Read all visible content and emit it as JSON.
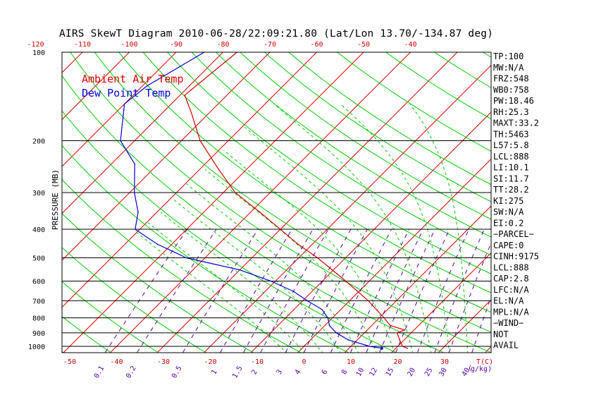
{
  "chart_data": {
    "type": "line",
    "title": "AIRS SkewT Diagram 2010-06-28/22:09:21.80 (Lat/Lon 13.70/-134.87 deg)",
    "ylabel": "PRESSURE (MB)",
    "xlabel_temp": "T(C)",
    "xlabel_mixing": "g/kg)",
    "y_scale": "log",
    "y_range_mb": [
      1050,
      100
    ],
    "x_range_c": [
      -53,
      47
    ],
    "pressure_ticks": [
      100,
      200,
      300,
      400,
      500,
      600,
      700,
      800,
      900,
      1000
    ],
    "pressure_tick_labels": [
      "100",
      "200",
      "300",
      "400",
      "500",
      "600",
      "700",
      "800",
      "900",
      "1000"
    ],
    "pressure_gridlines": [
      200,
      300,
      400,
      500,
      600,
      700,
      800,
      900,
      1000
    ],
    "bottom_temp_ticks": [
      -50,
      -40,
      -30,
      -20,
      -10,
      0,
      10,
      20,
      30
    ],
    "bottom_temp_labels": [
      "-50",
      "-40",
      "-30",
      "-20",
      "-10",
      "0",
      "10",
      "20",
      "30"
    ],
    "top_temp_ticks": [
      -120,
      -110,
      -100,
      -90,
      -80,
      -70,
      -60,
      -50,
      -40
    ],
    "top_temp_labels": [
      "-120",
      "-110",
      "-100",
      "-90",
      "-80",
      "-70",
      "-60",
      "-50",
      "-40"
    ],
    "isotherms_c": [
      -150,
      -140,
      -130,
      -120,
      -110,
      -100,
      -90,
      -80,
      -70,
      -60,
      -50,
      -40,
      -30,
      -20,
      -10,
      0,
      10,
      20,
      30,
      40
    ],
    "mixing_ratio_values": [
      0.1,
      0.2,
      0.5,
      1,
      1.5,
      2,
      3,
      4,
      6,
      8,
      10,
      12,
      15,
      20,
      25,
      30,
      40
    ],
    "mixing_ratio_labels": [
      "0.1",
      "0.2",
      "0.5",
      "1",
      "1.5",
      "2",
      "3",
      "4",
      "6",
      "8",
      "10",
      "12",
      "15",
      "20",
      "25",
      "30",
      "40"
    ],
    "dry_adiabat_thetas_k": [
      200,
      210,
      220,
      230,
      240,
      250,
      260,
      270,
      280,
      290,
      300,
      310,
      320,
      330,
      340,
      350,
      360,
      370,
      380,
      390,
      400,
      420,
      440,
      460,
      480,
      500
    ],
    "moist_adiabat_thetaw_k": [
      268,
      272,
      276,
      280,
      284,
      288,
      292,
      296,
      300,
      304,
      308
    ],
    "legend": [
      {
        "label": "Ambient Air Temp",
        "color": "#dd0000"
      },
      {
        "label": "Dew Point Temp",
        "color": "#0000dd"
      }
    ],
    "series": [
      {
        "name": "Ambient Air Temp",
        "color": "#cc0000",
        "points": [
          {
            "p": 100,
            "t": -77
          },
          {
            "p": 140,
            "t": -79
          },
          {
            "p": 160,
            "t": -74
          },
          {
            "p": 200,
            "t": -66
          },
          {
            "p": 250,
            "t": -56
          },
          {
            "p": 300,
            "t": -47.5
          },
          {
            "p": 350,
            "t": -38
          },
          {
            "p": 400,
            "t": -30
          },
          {
            "p": 450,
            "t": -23
          },
          {
            "p": 500,
            "t": -16
          },
          {
            "p": 600,
            "t": -5
          },
          {
            "p": 700,
            "t": 4
          },
          {
            "p": 800,
            "t": 11
          },
          {
            "p": 850,
            "t": 14
          },
          {
            "p": 880,
            "t": 18
          },
          {
            "p": 900,
            "t": 17
          },
          {
            "p": 950,
            "t": 19
          },
          {
            "p": 1000,
            "t": 21
          },
          {
            "p": 1015,
            "t": 22.5
          }
        ]
      },
      {
        "name": "Dew Point Temp",
        "color": "#0000cc",
        "points": [
          {
            "p": 100,
            "t": -84
          },
          {
            "p": 130,
            "t": -89
          },
          {
            "p": 150,
            "t": -90
          },
          {
            "p": 200,
            "t": -83
          },
          {
            "p": 240,
            "t": -75
          },
          {
            "p": 300,
            "t": -69
          },
          {
            "p": 350,
            "t": -64
          },
          {
            "p": 400,
            "t": -61
          },
          {
            "p": 450,
            "t": -53
          },
          {
            "p": 500,
            "t": -44
          },
          {
            "p": 550,
            "t": -30
          },
          {
            "p": 600,
            "t": -21
          },
          {
            "p": 650,
            "t": -14
          },
          {
            "p": 700,
            "t": -9
          },
          {
            "p": 750,
            "t": -4
          },
          {
            "p": 800,
            "t": -1
          },
          {
            "p": 850,
            "t": 1
          },
          {
            "p": 900,
            "t": 4
          },
          {
            "p": 950,
            "t": 8
          },
          {
            "p": 1000,
            "t": 14
          },
          {
            "p": 1015,
            "t": 17
          }
        ]
      }
    ],
    "indices": [
      "TP:100",
      "MW:N/A",
      "FRZ:548",
      "WB0:758",
      "PW:18.46",
      "RH:25.3",
      "MAXT:33.2",
      "TH:5463",
      "L57:5.8",
      "LCL:888",
      "LI:10.1",
      "SI:11.7",
      "TT:28.2",
      "KI:275",
      "SW:N/A",
      "EI:0.2",
      "−PARCEL−",
      "CAPE:0",
      "CINH:9175",
      "LCL:888",
      "CAP:2.8",
      "LFC:N/A",
      "EL:N/A",
      "MPL:N/A",
      "−WIND−",
      "NOT",
      "AVAIL"
    ],
    "colors": {
      "frame": "#000000",
      "isotherm": "#dd0000",
      "dry_adiabat": "#00cc00",
      "moist_adiabat": "#00cc00",
      "mixing_ratio": "#5500aa",
      "temp_axis": "#cc0000",
      "mixing_labels": "#5500aa",
      "title": "#000000"
    }
  }
}
